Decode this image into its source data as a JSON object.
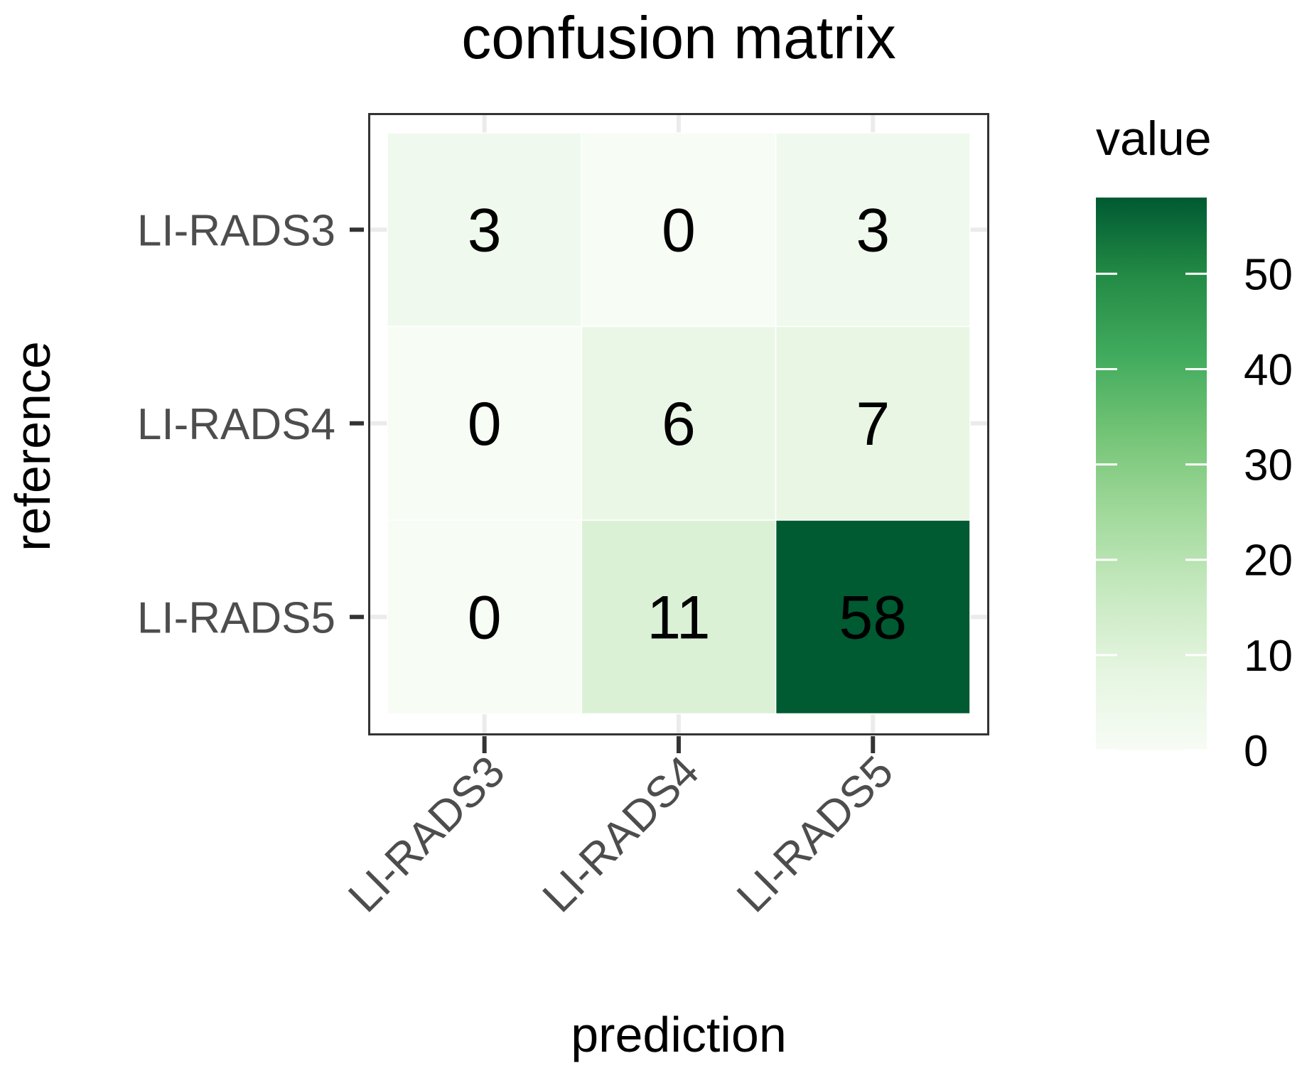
{
  "chart_data": {
    "type": "heatmap",
    "title": "confusion matrix",
    "xlabel": "prediction",
    "ylabel": "reference",
    "x_categories": [
      "LI-RADS3",
      "LI-RADS4",
      "LI-RADS5"
    ],
    "y_categories": [
      "LI-RADS3",
      "LI-RADS4",
      "LI-RADS5"
    ],
    "values": [
      [
        3,
        0,
        3
      ],
      [
        0,
        6,
        7
      ],
      [
        0,
        11,
        58
      ]
    ],
    "colorbar": {
      "title": "value",
      "min": 0,
      "max": 58,
      "ticks": [
        0,
        10,
        20,
        30,
        40,
        50
      ],
      "tick_labels": [
        "0",
        "10",
        "20",
        "30",
        "40",
        "50"
      ],
      "palette": [
        "#f7fcf5",
        "#e5f5e0",
        "#c7e9c0",
        "#a1d99b",
        "#74c476",
        "#41ab5d",
        "#238b45",
        "#005a32"
      ]
    },
    "legend_placement": "right",
    "grid": true
  }
}
